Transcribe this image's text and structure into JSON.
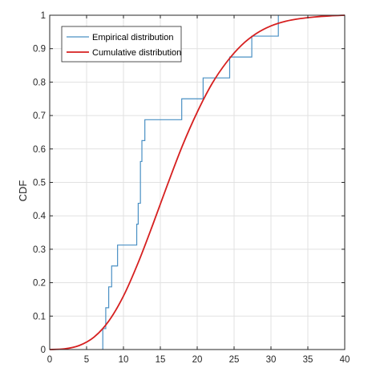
{
  "chart_data": {
    "type": "line",
    "xlabel": "",
    "ylabel": "CDF",
    "xlim": [
      0,
      40
    ],
    "ylim": [
      0,
      1
    ],
    "xticks": [
      0,
      5,
      10,
      15,
      20,
      25,
      30,
      35,
      40
    ],
    "yticks": [
      0,
      0.1,
      0.2,
      0.3,
      0.4,
      0.5,
      0.6,
      0.7,
      0.8,
      0.9,
      1
    ],
    "grid": true,
    "legend_position": "top-left",
    "series": [
      {
        "name": "Empirical distribution",
        "style": "stairs",
        "color": "#4a90c4",
        "x": [
          7.2,
          7.6,
          8.0,
          8.4,
          9.2,
          11.8,
          12.0,
          12.3,
          12.5,
          12.9,
          17.9,
          20.8,
          24.4,
          27.4,
          31.0
        ],
        "y": [
          0.0625,
          0.125,
          0.1875,
          0.25,
          0.3125,
          0.375,
          0.4375,
          0.5625,
          0.625,
          0.6875,
          0.75,
          0.8125,
          0.875,
          0.9375,
          1.0
        ]
      },
      {
        "name": "Cumulative distribution",
        "style": "smooth",
        "color": "#d62020",
        "x": [
          0,
          2,
          4,
          6,
          8,
          10,
          12,
          14,
          16,
          18,
          20,
          22,
          24,
          26,
          28,
          30,
          32,
          34,
          36,
          38,
          40
        ],
        "y": [
          0,
          0.002,
          0.012,
          0.037,
          0.085,
          0.16,
          0.26,
          0.375,
          0.495,
          0.61,
          0.71,
          0.795,
          0.86,
          0.91,
          0.945,
          0.968,
          0.982,
          0.99,
          0.995,
          0.998,
          1.0
        ]
      }
    ]
  }
}
